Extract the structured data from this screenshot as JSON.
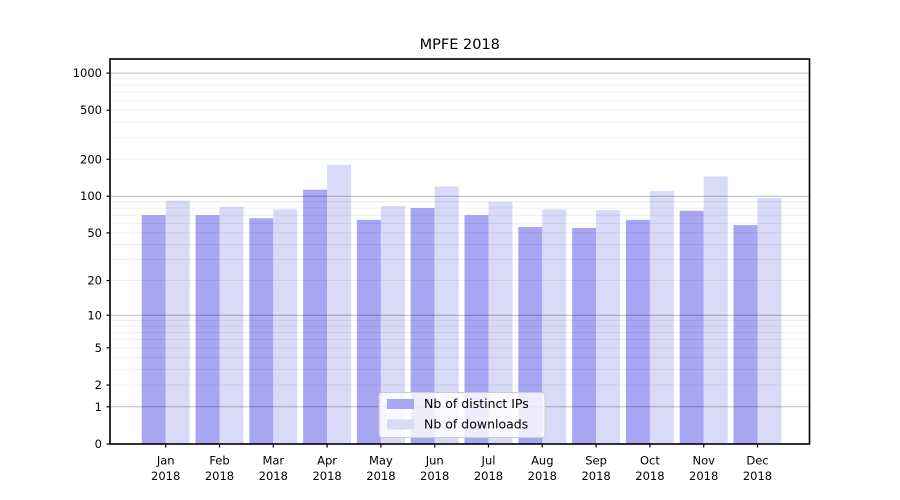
{
  "window": {
    "title": "MPFE 2018"
  },
  "chart_data": {
    "type": "bar",
    "title": "MPFE 2018",
    "categories": [
      "Jan",
      "Feb",
      "Mar",
      "Apr",
      "May",
      "Jun",
      "Jul",
      "Aug",
      "Sep",
      "Oct",
      "Nov",
      "Dec"
    ],
    "category_sublabel": "2018",
    "series": [
      {
        "name": "Nb of distinct IPs",
        "color": "#a6a6f2",
        "values": [
          70,
          70,
          66,
          113,
          64,
          80,
          70,
          56,
          55,
          64,
          76,
          58
        ]
      },
      {
        "name": "Nb of downloads",
        "color": "#d9d9f8",
        "values": [
          92,
          82,
          78,
          180,
          83,
          120,
          90,
          78,
          77,
          110,
          145,
          97
        ]
      }
    ],
    "xlabel": "",
    "ylabel": "",
    "yscale": "symlog-log1p",
    "yticks": [
      0,
      1,
      2,
      5,
      10,
      20,
      50,
      100,
      200,
      500,
      1000
    ],
    "ylim": [
      0,
      1300
    ],
    "grid": "horizontal, major and minor, drawn over bars",
    "legend": {
      "position": "inside lower-center-left",
      "entries": [
        "Nb of distinct IPs",
        "Nb of downloads"
      ]
    }
  },
  "colors": {
    "background": "#ffffff",
    "bar_distinct_ips": "#a6a6f2",
    "bar_downloads": "#d9d9f8",
    "major_grid": "rgba(0,0,0,0.27)",
    "minor_grid": "rgba(0,0,0,0.08)",
    "spine": "#000000",
    "legend_border": "#cccccc",
    "legend_background": "rgba(255,255,255,0.8)"
  }
}
